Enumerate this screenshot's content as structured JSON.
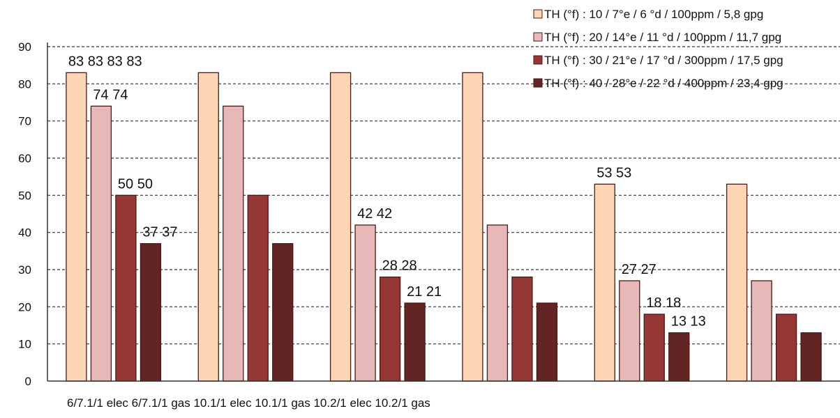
{
  "chart_data": {
    "type": "bar",
    "title": "",
    "xlabel": "",
    "ylabel": "",
    "ylim": [
      0,
      90
    ],
    "yticks": [
      0,
      10,
      20,
      30,
      40,
      50,
      60,
      70,
      80,
      90
    ],
    "grid": "horizontal-dashed",
    "legend_position": "top-right",
    "categories_text": "6/7.1/1 elec 6/7.1/1 gas 10.1/1 elec 10.1/1 gas 10.2/1 elec 10.2/1 gas",
    "categories": [
      "6/7.1/1 elec",
      "6/7.1/1 gas",
      "10.1/1 elec",
      "10.1/1 gas",
      "10.2/1 elec",
      "10.2/1 gas"
    ],
    "series": [
      {
        "name": "TH (°f) : 10 / 7°e / 6 °d / 100ppm / 5,8 gpg",
        "color": "#fcd5b4",
        "values": [
          83,
          83,
          83,
          83,
          53,
          53
        ]
      },
      {
        "name": "TH (°f) : 20 / 14°e / 11 °d / 100ppm / 11,7 gpg",
        "color": "#e6b8b7",
        "values": [
          74,
          74,
          42,
          42,
          27,
          27
        ]
      },
      {
        "name": "TH (°f) : 30 / 21°e / 17 °d / 300ppm / 17,5 gpg",
        "color": "#953735",
        "values": [
          50,
          50,
          28,
          28,
          18,
          18
        ]
      },
      {
        "name": "TH (°f) : 40 / 28°e / 22 °d / 400ppm / 23,4 gpg",
        "color": "#632523",
        "values": [
          37,
          37,
          21,
          21,
          13,
          13
        ]
      }
    ],
    "data_labels": [
      {
        "series": 0,
        "category": 0,
        "text": "83 83 83 83"
      },
      {
        "series": 1,
        "category": 0,
        "text": "74 74"
      },
      {
        "series": 2,
        "category": 0,
        "text": "50 50"
      },
      {
        "series": 3,
        "category": 0,
        "text": "37 37"
      },
      {
        "series": 1,
        "category": 2,
        "text": "42 42"
      },
      {
        "series": 2,
        "category": 2,
        "text": "28 28"
      },
      {
        "series": 3,
        "category": 2,
        "text": "21 21"
      },
      {
        "series": 0,
        "category": 4,
        "text": "53 53"
      },
      {
        "series": 1,
        "category": 4,
        "text": "27 27"
      },
      {
        "series": 2,
        "category": 4,
        "text": "18 18"
      },
      {
        "series": 3,
        "category": 4,
        "text": "13 13"
      }
    ]
  }
}
